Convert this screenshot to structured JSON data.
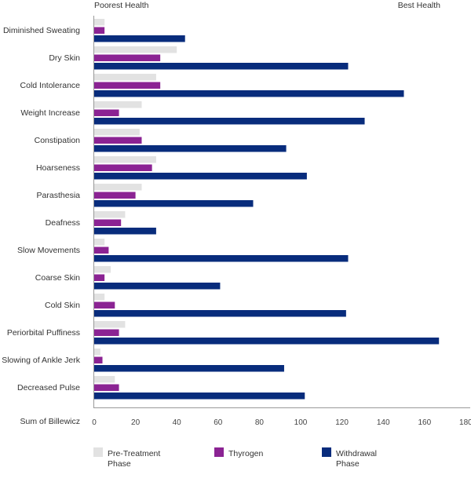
{
  "chart_data": {
    "type": "bar",
    "orientation": "horizontal",
    "top_left_label": "Poorest Health",
    "top_right_label": "Best Health",
    "xlabel": "Sum of Billewicz",
    "xlim": [
      0,
      180
    ],
    "xticks": [
      "0",
      "20",
      "40",
      "60",
      "80",
      "100",
      "120",
      "140",
      "160",
      "180"
    ],
    "categories": [
      "Diminished Sweating",
      "Dry Skin",
      "Cold Intolerance",
      "Weight Increase",
      "Constipation",
      "Hoarseness",
      "Parasthesia",
      "Deafness",
      "Slow Movements",
      "Coarse Skin",
      "Cold Skin",
      "Periorbital Puffiness",
      "Slowing of Ankle Jerk",
      "Decreased Pulse"
    ],
    "series": [
      {
        "name": "Pre-Treatment Phase",
        "legend_lines": [
          "Pre-Treatment",
          "Phase"
        ],
        "color": "#e2e2e2",
        "values": [
          5,
          40,
          30,
          23,
          22,
          30,
          23,
          15,
          5,
          8,
          5,
          15,
          3,
          10
        ]
      },
      {
        "name": "Thyrogen",
        "legend_lines": [
          "Thyrogen"
        ],
        "color": "#8b2393",
        "values": [
          5,
          32,
          32,
          12,
          23,
          28,
          20,
          13,
          7,
          5,
          10,
          12,
          4,
          12
        ]
      },
      {
        "name": "Withdrawal Phase",
        "legend_lines": [
          "Withdrawal",
          "Phase"
        ],
        "color": "#082c7c",
        "values": [
          44,
          123,
          150,
          131,
          93,
          103,
          77,
          30,
          123,
          61,
          122,
          167,
          92,
          102
        ]
      }
    ],
    "grid": false,
    "legend_position": "bottom"
  }
}
